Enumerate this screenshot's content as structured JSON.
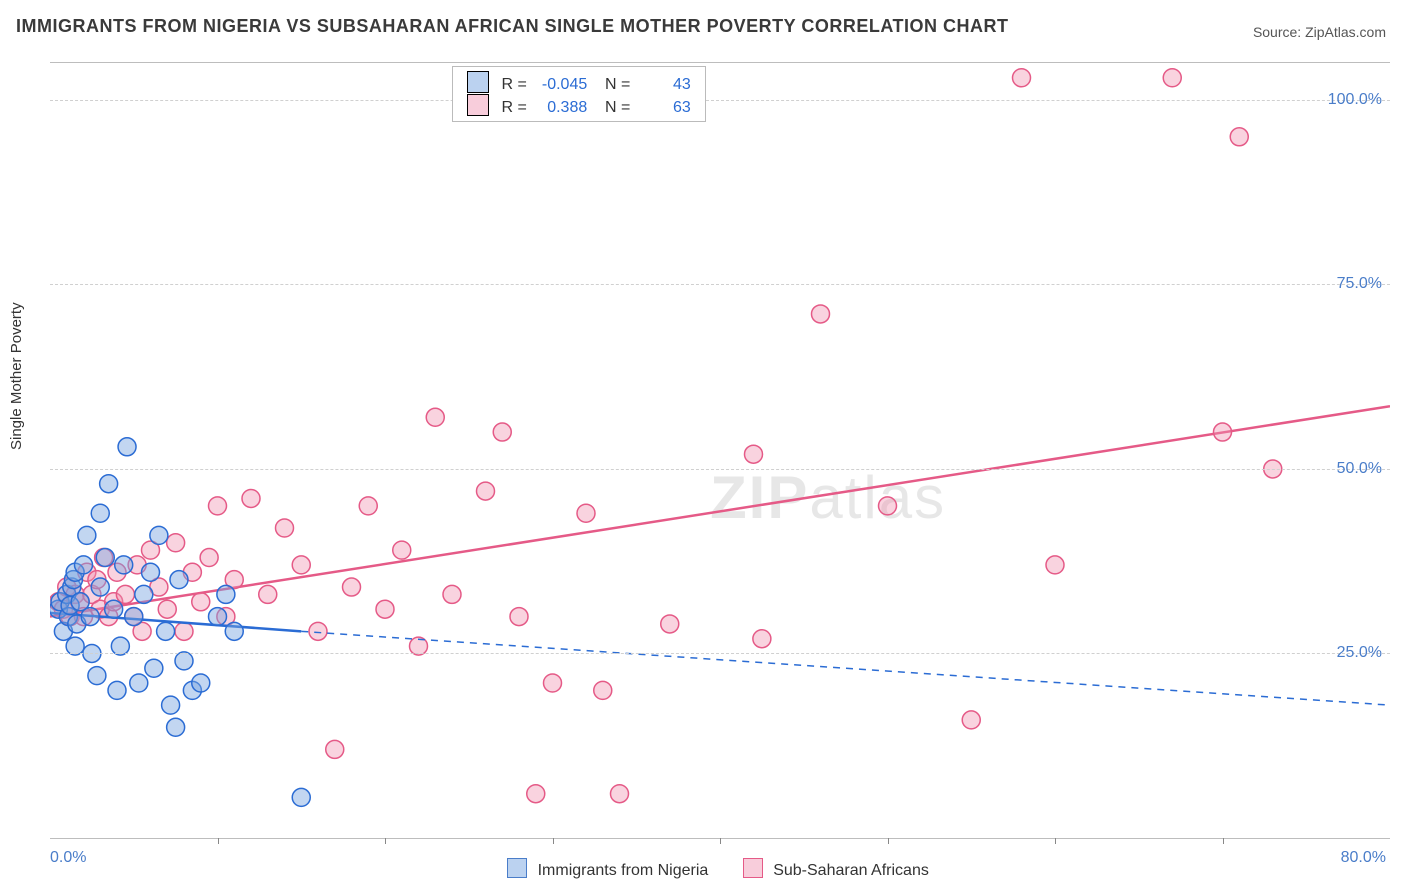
{
  "title": "IMMIGRANTS FROM NIGERIA VS SUBSAHARAN AFRICAN SINGLE MOTHER POVERTY CORRELATION CHART",
  "source": "Source: ZipAtlas.com",
  "watermark_prefix": "ZIP",
  "watermark_suffix": "atlas",
  "chart": {
    "type": "scatter",
    "background_color": "#ffffff",
    "grid_color": "#d0d0d0",
    "grid_dash": "6,5",
    "axis_color": "#bdbdbd",
    "xlim": [
      0,
      80
    ],
    "ylim": [
      0,
      105
    ],
    "x_tick_step": 10,
    "y_tick_values": [
      25,
      50,
      75,
      100
    ],
    "y_tick_labels": [
      "25.0%",
      "50.0%",
      "75.0%",
      "100.0%"
    ],
    "x_min_label": "0.0%",
    "x_max_label": "80.0%",
    "y_axis_label": "Single Mother Poverty",
    "tick_label_color": "#4a7dc9",
    "tick_label_fontsize": 16,
    "title_fontsize": 18,
    "title_color": "#3a3a3a",
    "marker_radius": 9,
    "marker_stroke_width": 1.5,
    "line_width": 2.5
  },
  "series": [
    {
      "name": "Immigrants from Nigeria",
      "color_fill": "rgba(120,165,225,0.45)",
      "color_stroke": "#2b6cd4",
      "line_color": "#2b6cd4",
      "R": "-0.045",
      "N": "43",
      "trend_solid": {
        "x1": 0,
        "y1": 30.5,
        "x2": 15,
        "y2": 28.0
      },
      "trend_dashed": {
        "x1": 15,
        "y1": 28.0,
        "x2": 80,
        "y2": 18.0
      },
      "points": [
        [
          0.5,
          31
        ],
        [
          0.6,
          32
        ],
        [
          0.8,
          28
        ],
        [
          1.0,
          33
        ],
        [
          1.1,
          30
        ],
        [
          1.2,
          31.5
        ],
        [
          1.3,
          34
        ],
        [
          1.4,
          35
        ],
        [
          1.5,
          36
        ],
        [
          1.5,
          26
        ],
        [
          1.6,
          29
        ],
        [
          1.8,
          32
        ],
        [
          2.0,
          37
        ],
        [
          2.2,
          41
        ],
        [
          2.4,
          30
        ],
        [
          2.5,
          25
        ],
        [
          2.8,
          22
        ],
        [
          3.0,
          34
        ],
        [
          3.0,
          44
        ],
        [
          3.3,
          38
        ],
        [
          3.5,
          48
        ],
        [
          3.8,
          31
        ],
        [
          4.0,
          20
        ],
        [
          4.2,
          26
        ],
        [
          4.4,
          37
        ],
        [
          4.6,
          53
        ],
        [
          5.0,
          30
        ],
        [
          5.3,
          21
        ],
        [
          5.6,
          33
        ],
        [
          6.0,
          36
        ],
        [
          6.2,
          23
        ],
        [
          6.5,
          41
        ],
        [
          6.9,
          28
        ],
        [
          7.2,
          18
        ],
        [
          7.5,
          15
        ],
        [
          7.7,
          35
        ],
        [
          8.0,
          24
        ],
        [
          8.5,
          20
        ],
        [
          9.0,
          21
        ],
        [
          10.0,
          30
        ],
        [
          10.5,
          33
        ],
        [
          11.0,
          28
        ],
        [
          15.0,
          5.5
        ]
      ]
    },
    {
      "name": "Sub-Saharan Africans",
      "color_fill": "rgba(240,145,175,0.40)",
      "color_stroke": "#e55a87",
      "line_color": "#e55a87",
      "R": "0.388",
      "N": "63",
      "trend_solid": {
        "x1": 0,
        "y1": 30.0,
        "x2": 80,
        "y2": 58.5
      },
      "points": [
        [
          0.5,
          32
        ],
        [
          0.8,
          31
        ],
        [
          1.0,
          34
        ],
        [
          1.2,
          30
        ],
        [
          1.5,
          33
        ],
        [
          1.8,
          32
        ],
        [
          2.0,
          30
        ],
        [
          2.2,
          36
        ],
        [
          2.5,
          33
        ],
        [
          2.8,
          35
        ],
        [
          3.0,
          31
        ],
        [
          3.2,
          38
        ],
        [
          3.5,
          30
        ],
        [
          3.8,
          32
        ],
        [
          4.0,
          36
        ],
        [
          4.5,
          33
        ],
        [
          5.0,
          30
        ],
        [
          5.2,
          37
        ],
        [
          5.5,
          28
        ],
        [
          6.0,
          39
        ],
        [
          6.5,
          34
        ],
        [
          7.0,
          31
        ],
        [
          7.5,
          40
        ],
        [
          8.0,
          28
        ],
        [
          8.5,
          36
        ],
        [
          9.0,
          32
        ],
        [
          9.5,
          38
        ],
        [
          10.0,
          45
        ],
        [
          10.5,
          30
        ],
        [
          11.0,
          35
        ],
        [
          12.0,
          46
        ],
        [
          13.0,
          33
        ],
        [
          14.0,
          42
        ],
        [
          15.0,
          37
        ],
        [
          16.0,
          28
        ],
        [
          17.0,
          12
        ],
        [
          18.0,
          34
        ],
        [
          19.0,
          45
        ],
        [
          20.0,
          31
        ],
        [
          21.0,
          39
        ],
        [
          22.0,
          26
        ],
        [
          23.0,
          57
        ],
        [
          24.0,
          33
        ],
        [
          26.0,
          47
        ],
        [
          27.0,
          55
        ],
        [
          28.0,
          30
        ],
        [
          29.0,
          6
        ],
        [
          30.0,
          21
        ],
        [
          32.0,
          44
        ],
        [
          33.0,
          20
        ],
        [
          34.0,
          6
        ],
        [
          37.0,
          29
        ],
        [
          42.0,
          52
        ],
        [
          42.5,
          27
        ],
        [
          46.0,
          71
        ],
        [
          50.0,
          45
        ],
        [
          55.0,
          16
        ],
        [
          58.0,
          103
        ],
        [
          60.0,
          37
        ],
        [
          67.0,
          103
        ],
        [
          70.0,
          55
        ],
        [
          71.0,
          95
        ],
        [
          73.0,
          50
        ]
      ]
    }
  ],
  "legend_bottom": [
    {
      "swatch_class": "sw-blue",
      "label": "Immigrants from Nigeria"
    },
    {
      "swatch_class": "sw-pink",
      "label": "Sub-Saharan Africans"
    }
  ],
  "legend_top_labels": {
    "R": "R =",
    "N": "N ="
  }
}
